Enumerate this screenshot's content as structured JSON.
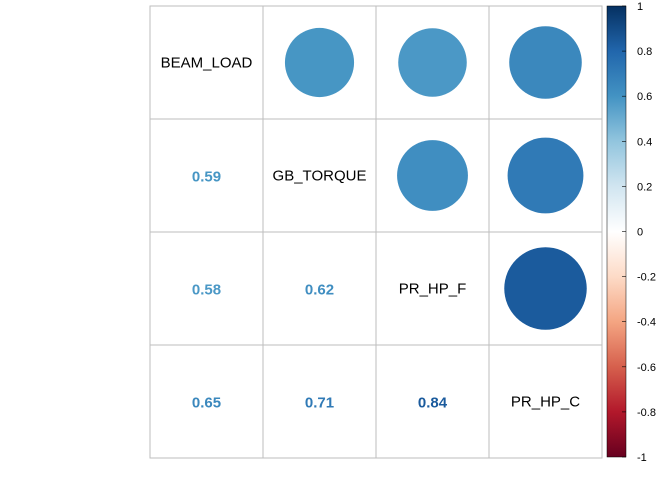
{
  "chart_data": {
    "type": "heatmap",
    "variables": [
      "BEAM_LOAD",
      "GB_TORQUE",
      "PR_HP_F",
      "PR_HP_C"
    ],
    "matrix": [
      [
        1,
        0.59,
        0.58,
        0.65
      ],
      [
        0.59,
        1,
        0.62,
        0.71
      ],
      [
        0.58,
        0.62,
        1,
        0.84
      ],
      [
        0.65,
        0.71,
        0.84,
        1
      ]
    ],
    "lower_labels": [
      {
        "row": 1,
        "col": 0,
        "text": "0.59"
      },
      {
        "row": 2,
        "col": 0,
        "text": "0.58"
      },
      {
        "row": 2,
        "col": 1,
        "text": "0.62"
      },
      {
        "row": 3,
        "col": 0,
        "text": "0.65"
      },
      {
        "row": 3,
        "col": 1,
        "text": "0.71"
      },
      {
        "row": 3,
        "col": 2,
        "text": "0.84"
      }
    ],
    "upper_method": "circle",
    "lower_method": "number",
    "colorbar": {
      "range": [
        -1,
        1
      ],
      "ticks": [
        "1",
        "0.8",
        "0.6",
        "0.4",
        "0.2",
        "0",
        "-0.2",
        "-0.4",
        "-0.6",
        "-0.8",
        "-1"
      ],
      "placement": "right"
    },
    "palette": [
      "#67001F",
      "#B2182B",
      "#D6604D",
      "#F4A582",
      "#FDDBC7",
      "#FFFFFF",
      "#D1E5F0",
      "#92C5DE",
      "#4393C3",
      "#2166AC",
      "#053061"
    ],
    "grid_color": "#BEBEBE"
  }
}
